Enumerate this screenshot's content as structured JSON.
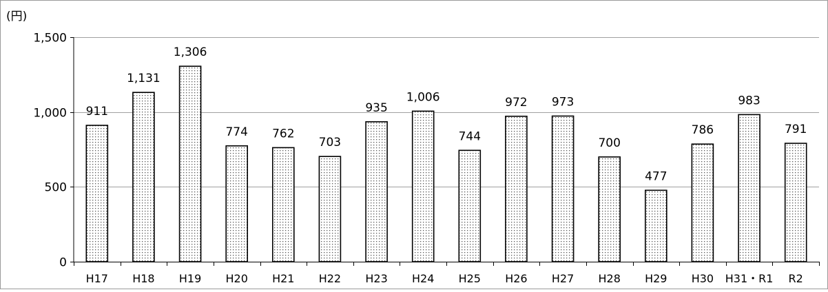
{
  "chart_data": {
    "type": "bar",
    "unit_label": "(円)",
    "categories": [
      "H17",
      "H18",
      "H19",
      "H20",
      "H21",
      "H22",
      "H23",
      "H24",
      "H25",
      "H26",
      "H27",
      "H28",
      "H29",
      "H30",
      "H31・R1",
      "R2"
    ],
    "values": [
      911,
      1131,
      1306,
      774,
      762,
      703,
      935,
      1006,
      744,
      972,
      973,
      700,
      477,
      786,
      983,
      791
    ],
    "value_labels": [
      "911",
      "1,131",
      "1,306",
      "774",
      "762",
      "703",
      "935",
      "1,006",
      "744",
      "972",
      "973",
      "700",
      "477",
      "786",
      "983",
      "791"
    ],
    "yticks": [
      0,
      500,
      1000,
      1500
    ],
    "ytick_labels": [
      "0",
      "500",
      "1,000",
      "1,500"
    ],
    "ylim": [
      0,
      1500
    ],
    "grid": true,
    "legend": "none",
    "bar_fill": "dotted pattern",
    "colors": {
      "bar_edge": "#000000",
      "dot": "#555555",
      "grid": "#a0a0a0"
    }
  }
}
